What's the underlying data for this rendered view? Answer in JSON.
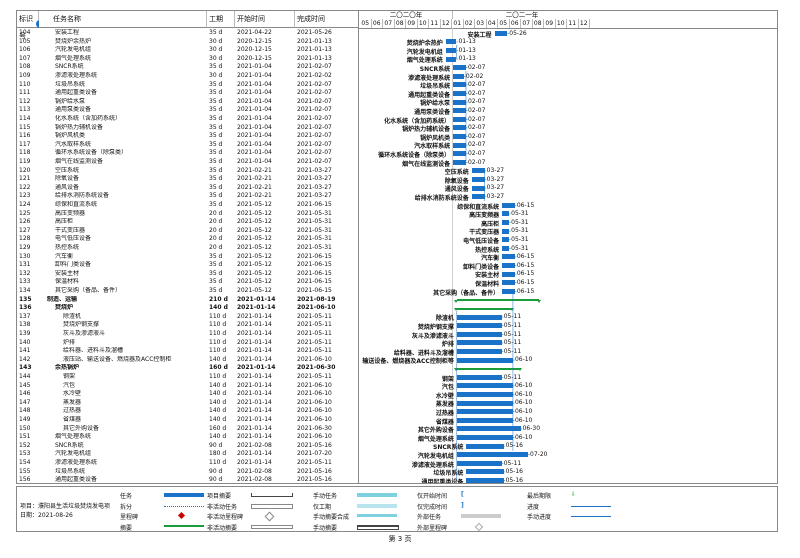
{
  "headers": {
    "id": "标识号",
    "name": "任务名称",
    "duration": "工期",
    "start": "开始时间",
    "finish": "完成时间"
  },
  "years": [
    "二〇二〇年",
    "二〇二一年"
  ],
  "months": [
    "05",
    "06",
    "07",
    "08",
    "09",
    "10",
    "11",
    "12",
    "01",
    "02",
    "03",
    "04",
    "05",
    "06",
    "07",
    "08",
    "09",
    "10",
    "11",
    "12"
  ],
  "tasks": [
    {
      "id": "104",
      "name": "安装工程",
      "dur": "35 d",
      "start": "2021-04-22",
      "finish": "2021-05-26",
      "bold": false,
      "indent": 2,
      "label": "安装工程",
      "date": "05-26"
    },
    {
      "id": "105",
      "name": "焚烧炉余热炉",
      "dur": "30 d",
      "start": "2020-12-15",
      "finish": "2021-01-13",
      "bold": false,
      "indent": 2,
      "label": "焚烧炉余热炉",
      "date": "01-13"
    },
    {
      "id": "106",
      "name": "汽轮发电机组",
      "dur": "30 d",
      "start": "2020-12-15",
      "finish": "2021-01-13",
      "bold": false,
      "indent": 2,
      "label": "汽轮发电机组",
      "date": "01-13"
    },
    {
      "id": "107",
      "name": "烟气处理系统",
      "dur": "30 d",
      "start": "2020-12-15",
      "finish": "2021-01-13",
      "bold": false,
      "indent": 2,
      "label": "烟气处理系统",
      "date": "01-13"
    },
    {
      "id": "108",
      "name": "SNCR系统",
      "dur": "35 d",
      "start": "2021-01-04",
      "finish": "2021-02-07",
      "bold": false,
      "indent": 2,
      "label": "SNCR系统",
      "date": "02-07"
    },
    {
      "id": "109",
      "name": "渗滤液处理系统",
      "dur": "30 d",
      "start": "2021-01-04",
      "finish": "2021-02-02",
      "bold": false,
      "indent": 2,
      "label": "渗滤液处理系统",
      "date": "02-02"
    },
    {
      "id": "110",
      "name": "垃圾吊系统",
      "dur": "35 d",
      "start": "2021-01-04",
      "finish": "2021-02-07",
      "bold": false,
      "indent": 2,
      "label": "垃圾吊系统",
      "date": "02-07"
    },
    {
      "id": "111",
      "name": "通用起重类设备",
      "dur": "35 d",
      "start": "2021-01-04",
      "finish": "2021-02-07",
      "bold": false,
      "indent": 2,
      "label": "通用起重类设备",
      "date": "02-07"
    },
    {
      "id": "112",
      "name": "锅炉给水泵",
      "dur": "35 d",
      "start": "2021-01-04",
      "finish": "2021-02-07",
      "bold": false,
      "indent": 2,
      "label": "锅炉给水泵",
      "date": "02-07"
    },
    {
      "id": "113",
      "name": "通用泵类设备",
      "dur": "35 d",
      "start": "2021-01-04",
      "finish": "2021-02-07",
      "bold": false,
      "indent": 2,
      "label": "通用泵类设备",
      "date": "02-07"
    },
    {
      "id": "114",
      "name": "化水系统（含加药系统）",
      "dur": "35 d",
      "start": "2021-01-04",
      "finish": "2021-02-07",
      "bold": false,
      "indent": 2,
      "label": "化水系统（含加药系统）",
      "date": "02-07"
    },
    {
      "id": "115",
      "name": "锅炉热力辅机设备",
      "dur": "35 d",
      "start": "2021-01-04",
      "finish": "2021-02-07",
      "bold": false,
      "indent": 2,
      "label": "锅炉热力辅机设备",
      "date": "02-07"
    },
    {
      "id": "116",
      "name": "锅炉风机类",
      "dur": "35 d",
      "start": "2021-01-04",
      "finish": "2021-02-07",
      "bold": false,
      "indent": 2,
      "label": "锅炉风机类",
      "date": "02-07"
    },
    {
      "id": "117",
      "name": "汽水取样系统",
      "dur": "35 d",
      "start": "2021-01-04",
      "finish": "2021-02-07",
      "bold": false,
      "indent": 2,
      "label": "汽水取样系统",
      "date": "02-07"
    },
    {
      "id": "118",
      "name": "循环水系统设备（除泵类）",
      "dur": "35 d",
      "start": "2021-01-04",
      "finish": "2021-02-07",
      "bold": false,
      "indent": 2,
      "label": "循环水系统设备（除泵类）",
      "date": "02-07"
    },
    {
      "id": "119",
      "name": "烟气在线监测设备",
      "dur": "35 d",
      "start": "2021-01-04",
      "finish": "2021-02-07",
      "bold": false,
      "indent": 2,
      "label": "烟气在线监测设备",
      "date": "02-07"
    },
    {
      "id": "120",
      "name": "空压系统",
      "dur": "35 d",
      "start": "2021-02-21",
      "finish": "2021-03-27",
      "bold": false,
      "indent": 2,
      "label": "空压系统",
      "date": "03-27"
    },
    {
      "id": "121",
      "name": "除氧设备",
      "dur": "35 d",
      "start": "2021-02-21",
      "finish": "2021-03-27",
      "bold": false,
      "indent": 2,
      "label": "除氧设备",
      "date": "03-27"
    },
    {
      "id": "122",
      "name": "通风设备",
      "dur": "35 d",
      "start": "2021-02-21",
      "finish": "2021-03-27",
      "bold": false,
      "indent": 2,
      "label": "通风设备",
      "date": "03-27"
    },
    {
      "id": "123",
      "name": "给排水消防系统设备",
      "dur": "35 d",
      "start": "2021-02-21",
      "finish": "2021-03-27",
      "bold": false,
      "indent": 2,
      "label": "给排水消防系统设备",
      "date": "03-27"
    },
    {
      "id": "124",
      "name": "综保和直流系统",
      "dur": "35 d",
      "start": "2021-05-12",
      "finish": "2021-06-15",
      "bold": false,
      "indent": 2,
      "label": "综保和直流系统",
      "date": "06-15"
    },
    {
      "id": "125",
      "name": "高压变频器",
      "dur": "20 d",
      "start": "2021-05-12",
      "finish": "2021-05-31",
      "bold": false,
      "indent": 2,
      "label": "高压变频器",
      "date": "05-31"
    },
    {
      "id": "126",
      "name": "高压柜",
      "dur": "20 d",
      "start": "2021-05-12",
      "finish": "2021-05-31",
      "bold": false,
      "indent": 2,
      "label": "高压柜",
      "date": "05-31"
    },
    {
      "id": "127",
      "name": "干式变压器",
      "dur": "20 d",
      "start": "2021-05-12",
      "finish": "2021-05-31",
      "bold": false,
      "indent": 2,
      "label": "干式变压器",
      "date": "05-31"
    },
    {
      "id": "128",
      "name": "电气低压设备",
      "dur": "20 d",
      "start": "2021-05-12",
      "finish": "2021-05-31",
      "bold": false,
      "indent": 2,
      "label": "电气低压设备",
      "date": "05-31"
    },
    {
      "id": "129",
      "name": "热控系统",
      "dur": "20 d",
      "start": "2021-05-12",
      "finish": "2021-05-31",
      "bold": false,
      "indent": 2,
      "label": "热控系统",
      "date": "05-31"
    },
    {
      "id": "130",
      "name": "汽车衡",
      "dur": "35 d",
      "start": "2021-05-12",
      "finish": "2021-06-15",
      "bold": false,
      "indent": 2,
      "label": "汽车衡",
      "date": "06-15"
    },
    {
      "id": "131",
      "name": "卸料门类设备",
      "dur": "35 d",
      "start": "2021-05-12",
      "finish": "2021-06-15",
      "bold": false,
      "indent": 2,
      "label": "卸料门类设备",
      "date": "06-15"
    },
    {
      "id": "132",
      "name": "安装主材",
      "dur": "35 d",
      "start": "2021-05-12",
      "finish": "2021-06-15",
      "bold": false,
      "indent": 2,
      "label": "安装主材",
      "date": "06-15"
    },
    {
      "id": "133",
      "name": "保温材料",
      "dur": "35 d",
      "start": "2021-05-12",
      "finish": "2021-06-15",
      "bold": false,
      "indent": 2,
      "label": "保温材料",
      "date": "06-15"
    },
    {
      "id": "134",
      "name": "其它采购（备品、备件）",
      "dur": "35 d",
      "start": "2021-05-12",
      "finish": "2021-06-15",
      "bold": false,
      "indent": 2,
      "label": "其它采购（备品、备件）",
      "date": "06-15"
    },
    {
      "id": "135",
      "name": "制造、运输",
      "dur": "210 d",
      "start": "2021-01-14",
      "finish": "2021-08-19",
      "bold": true,
      "indent": 1,
      "summary": true
    },
    {
      "id": "136",
      "name": "焚烧炉",
      "dur": "140 d",
      "start": "2021-01-14",
      "finish": "2021-06-10",
      "bold": true,
      "indent": 2,
      "summary": true
    },
    {
      "id": "137",
      "name": "除渣机",
      "dur": "110 d",
      "start": "2021-01-14",
      "finish": "2021-05-11",
      "bold": false,
      "indent": 3,
      "label": "除渣机",
      "date": "05-11"
    },
    {
      "id": "138",
      "name": "焚烧炉钢支撑",
      "dur": "110 d",
      "start": "2021-01-14",
      "finish": "2021-05-11",
      "bold": false,
      "indent": 3,
      "label": "焚烧炉钢支撑",
      "date": "05-11"
    },
    {
      "id": "139",
      "name": "灰斗及渗滤液斗",
      "dur": "110 d",
      "start": "2021-01-14",
      "finish": "2021-05-11",
      "bold": false,
      "indent": 3,
      "label": "灰斗及渗滤液斗",
      "date": "05-11"
    },
    {
      "id": "140",
      "name": "炉排",
      "dur": "110 d",
      "start": "2021-01-14",
      "finish": "2021-05-11",
      "bold": false,
      "indent": 3,
      "label": "炉排",
      "date": "05-11"
    },
    {
      "id": "141",
      "name": "给料器、进料斗及溜槽",
      "dur": "110 d",
      "start": "2021-01-14",
      "finish": "2021-05-11",
      "bold": false,
      "indent": 3,
      "label": "给料器、进料斗及溜槽",
      "date": "05-11"
    },
    {
      "id": "142",
      "name": "液压站、输送设备、燃烧器及ACC控制柜",
      "dur": "140 d",
      "start": "2021-01-14",
      "finish": "2021-06-10",
      "bold": false,
      "indent": 3,
      "label": "液压站、输送设备、燃烧器及ACC控制柜等",
      "date": "06-10"
    },
    {
      "id": "143",
      "name": "余热锅炉",
      "dur": "160 d",
      "start": "2021-01-14",
      "finish": "2021-06-30",
      "bold": true,
      "indent": 2,
      "summary": true
    },
    {
      "id": "144",
      "name": "钢架",
      "dur": "110 d",
      "start": "2021-01-14",
      "finish": "2021-05-11",
      "bold": false,
      "indent": 3,
      "label": "钢架",
      "date": "05-11"
    },
    {
      "id": "145",
      "name": "汽包",
      "dur": "140 d",
      "start": "2021-01-14",
      "finish": "2021-06-10",
      "bold": false,
      "indent": 3,
      "label": "汽包",
      "date": "06-10"
    },
    {
      "id": "146",
      "name": "水冷壁",
      "dur": "140 d",
      "start": "2021-01-14",
      "finish": "2021-06-10",
      "bold": false,
      "indent": 3,
      "label": "水冷壁",
      "date": "06-10"
    },
    {
      "id": "147",
      "name": "蒸发器",
      "dur": "140 d",
      "start": "2021-01-14",
      "finish": "2021-06-10",
      "bold": false,
      "indent": 3,
      "label": "蒸发器",
      "date": "06-10"
    },
    {
      "id": "148",
      "name": "过热器",
      "dur": "140 d",
      "start": "2021-01-14",
      "finish": "2021-06-10",
      "bold": false,
      "indent": 3,
      "label": "过热器",
      "date": "06-10"
    },
    {
      "id": "149",
      "name": "省煤器",
      "dur": "140 d",
      "start": "2021-01-14",
      "finish": "2021-06-10",
      "bold": false,
      "indent": 3,
      "label": "省煤器",
      "date": "06-10"
    },
    {
      "id": "150",
      "name": "其它外购设备",
      "dur": "160 d",
      "start": "2021-01-14",
      "finish": "2021-06-30",
      "bold": false,
      "indent": 3,
      "label": "其它外购设备",
      "date": "06-30"
    },
    {
      "id": "151",
      "name": "烟气处理系统",
      "dur": "140 d",
      "start": "2021-01-14",
      "finish": "2021-06-10",
      "bold": false,
      "indent": 2,
      "label": "烟气处理系统",
      "date": "06-10"
    },
    {
      "id": "152",
      "name": "SNCR系统",
      "dur": "90 d",
      "start": "2021-02-08",
      "finish": "2021-05-16",
      "bold": false,
      "indent": 2,
      "label": "SNCR系统",
      "date": "05-16"
    },
    {
      "id": "153",
      "name": "汽轮发电机组",
      "dur": "180 d",
      "start": "2021-01-14",
      "finish": "2021-07-20",
      "bold": false,
      "indent": 2,
      "label": "汽轮发电机组",
      "date": "07-20"
    },
    {
      "id": "154",
      "name": "渗滤液处理系统",
      "dur": "110 d",
      "start": "2021-01-14",
      "finish": "2021-05-11",
      "bold": false,
      "indent": 2,
      "label": "渗滤液处理系统",
      "date": "05-11"
    },
    {
      "id": "155",
      "name": "垃圾吊系统",
      "dur": "90 d",
      "start": "2021-02-08",
      "finish": "2021-05-16",
      "bold": false,
      "indent": 2,
      "label": "垃圾吊系统",
      "date": "05-16"
    },
    {
      "id": "156",
      "name": "通用起重类设备",
      "dur": "90 d",
      "start": "2021-02-08",
      "finish": "2021-05-16",
      "bold": false,
      "indent": 2,
      "label": "通用起重类设备",
      "date": "05-16"
    }
  ],
  "legend": {
    "project": "项目：濮阳县生活垃圾焚烧发电项",
    "date": "日期：2021-08-26",
    "items": [
      [
        "任务",
        "项目摘要",
        "手动任务",
        "仅开始时间",
        "最后期限"
      ],
      [
        "拆分",
        "非活动任务",
        "仅工期",
        "仅完成时间",
        "进度"
      ],
      [
        "里程碑",
        "非活动里程碑",
        "手动摘要合成",
        "外部任务",
        "手动进度"
      ],
      [
        "摘要",
        "非活动摘要",
        "手动摘要",
        "外部里程碑",
        ""
      ]
    ]
  },
  "footer": "第 3 页",
  "colors": {
    "bar": "#1a73c9",
    "summary": "#1a9c3a",
    "link": "#1a73c9"
  }
}
